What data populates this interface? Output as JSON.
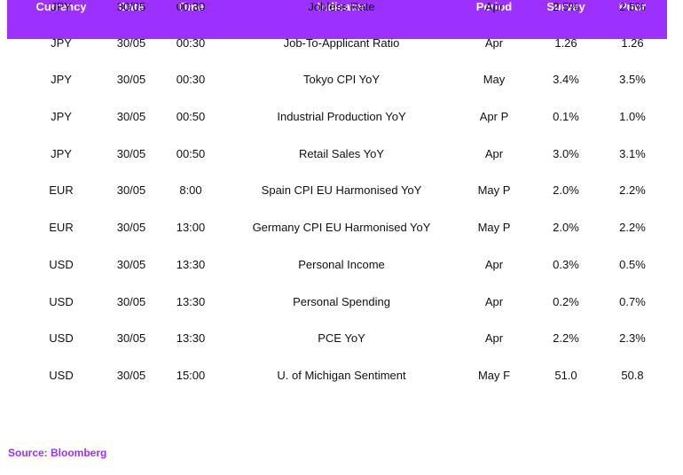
{
  "table": {
    "headers": [
      "Currency",
      "Date",
      "Time",
      "Indicator",
      "Period",
      "Survey",
      "Prior"
    ],
    "rows": [
      [
        "JPY",
        "30/05",
        "00:30",
        "Jobless Rate",
        "Apr",
        "2.5%",
        "2.5%"
      ],
      [
        "JPY",
        "30/05",
        "00:30",
        "Job-To-Applicant Ratio",
        "Apr",
        "1.26",
        "1.26"
      ],
      [
        "JPY",
        "30/05",
        "00:30",
        "Tokyo CPI YoY",
        "May",
        "3.4%",
        "3.5%"
      ],
      [
        "JPY",
        "30/05",
        "00:50",
        "Industrial Production YoY",
        "Apr P",
        "0.1%",
        "1.0%"
      ],
      [
        "JPY",
        "30/05",
        "00:50",
        "Retail Sales YoY",
        "Apr",
        "3.0%",
        "3.1%"
      ],
      [
        "EUR",
        "30/05",
        "8:00",
        "Spain CPI EU Harmonised YoY",
        "May P",
        "2.0%",
        "2.2%"
      ],
      [
        "EUR",
        "30/05",
        "13:00",
        "Germany CPI EU Harmonised YoY",
        "May P",
        "2.0%",
        "2.2%"
      ],
      [
        "USD",
        "30/05",
        "13:30",
        "Personal Income",
        "Apr",
        "0.3%",
        "0.5%"
      ],
      [
        "USD",
        "30/05",
        "13:30",
        "Personal Spending",
        "Apr",
        "0.2%",
        "0.7%"
      ],
      [
        "USD",
        "30/05",
        "13:30",
        "PCE YoY",
        "Apr",
        "2.2%",
        "2.3%"
      ],
      [
        "USD",
        "30/05",
        "15:00",
        "U. of Michigan Sentiment",
        "May F",
        "51.0",
        "50.8"
      ]
    ]
  },
  "source": "Source: Bloomberg",
  "colors": {
    "accent": "#9b30ff",
    "header_text": "#ffffff"
  }
}
